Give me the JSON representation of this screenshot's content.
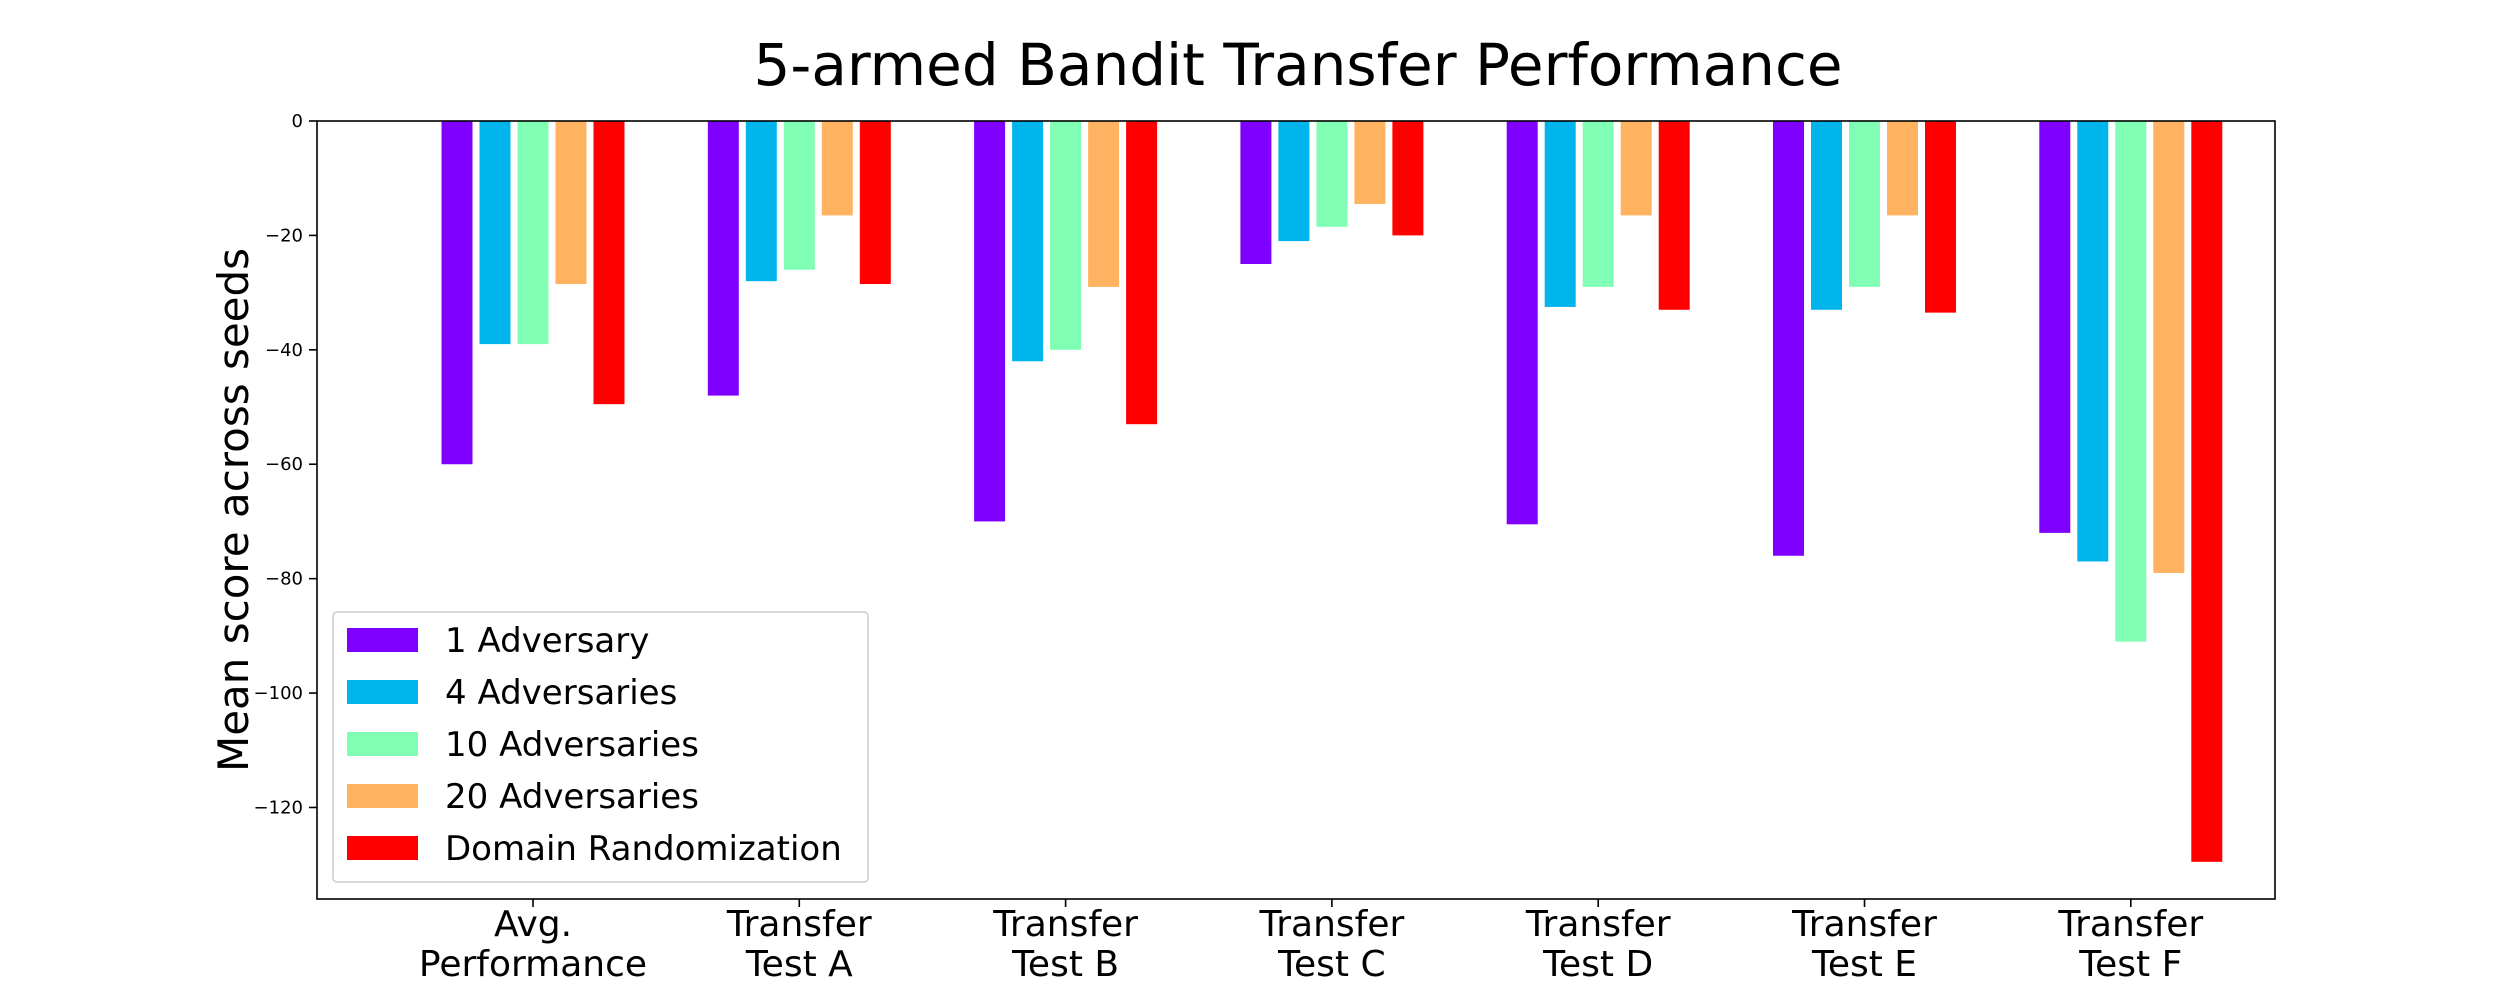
{
  "chart_data": {
    "type": "bar",
    "title": "5-armed Bandit Transfer Performance",
    "xlabel": "",
    "ylabel": "Mean score across seeds",
    "ylim": [
      -136,
      0
    ],
    "yticks": [
      0,
      -20,
      -40,
      -60,
      -80,
      -100,
      -120
    ],
    "grid": false,
    "legend_position": "lower-left",
    "categories": [
      [
        "Avg.",
        "Performance"
      ],
      [
        "Transfer",
        "Test A"
      ],
      [
        "Transfer",
        "Test B"
      ],
      [
        "Transfer",
        "Test C"
      ],
      [
        "Transfer",
        "Test D"
      ],
      [
        "Transfer",
        "Test E"
      ],
      [
        "Transfer",
        "Test F"
      ]
    ],
    "series": [
      {
        "name": "1 Adversary",
        "color": "#8000ff",
        "values": [
          -60,
          -48,
          -70,
          -25,
          -70.5,
          -76,
          -72
        ]
      },
      {
        "name": "4 Adversaries",
        "color": "#00b5eb",
        "values": [
          -39,
          -28,
          -42,
          -21,
          -32.5,
          -33,
          -77
        ]
      },
      {
        "name": "10 Adversaries",
        "color": "#80ffb4",
        "values": [
          -39,
          -26,
          -40,
          -18.5,
          -29,
          -29,
          -91
        ]
      },
      {
        "name": "20 Adversaries",
        "color": "#ffb360",
        "values": [
          -28.5,
          -16.5,
          -29,
          -14.5,
          -16.5,
          -16.5,
          -79
        ]
      },
      {
        "name": "Domain Randomization",
        "color": "#ff0000",
        "values": [
          -49.5,
          -28.5,
          -53,
          -20,
          -33,
          -33.5,
          -129.5
        ]
      }
    ]
  }
}
